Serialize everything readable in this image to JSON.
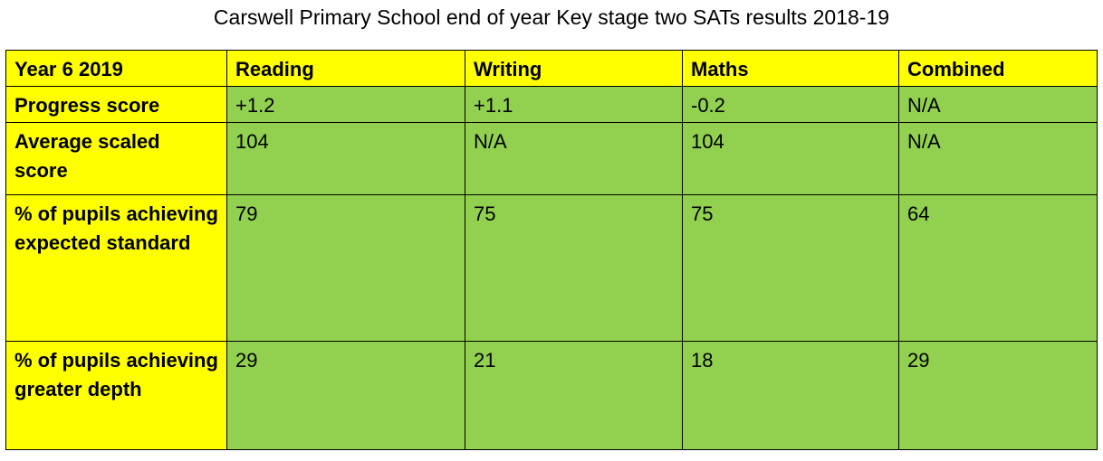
{
  "title": "Carswell Primary School end of year Key stage two SATs results 2018-19",
  "colors": {
    "header": "#ffff00",
    "cells": "#92d050"
  },
  "table": {
    "headers": [
      "Year 6 2019",
      "Reading",
      "Writing",
      "Maths",
      "Combined"
    ],
    "rows": [
      {
        "label": "Progress score",
        "values": [
          "+1.2",
          "+1.1",
          "-0.2",
          "N/A"
        ]
      },
      {
        "label": "Average scaled score",
        "values": [
          "104",
          "N/A",
          "104",
          "N/A"
        ]
      },
      {
        "label": "% of pupils achieving expected standard",
        "values": [
          "79",
          "75",
          "75",
          "64"
        ]
      },
      {
        "label": "% of pupils achieving greater depth",
        "values": [
          "29",
          "21",
          "18",
          "29"
        ]
      }
    ]
  }
}
